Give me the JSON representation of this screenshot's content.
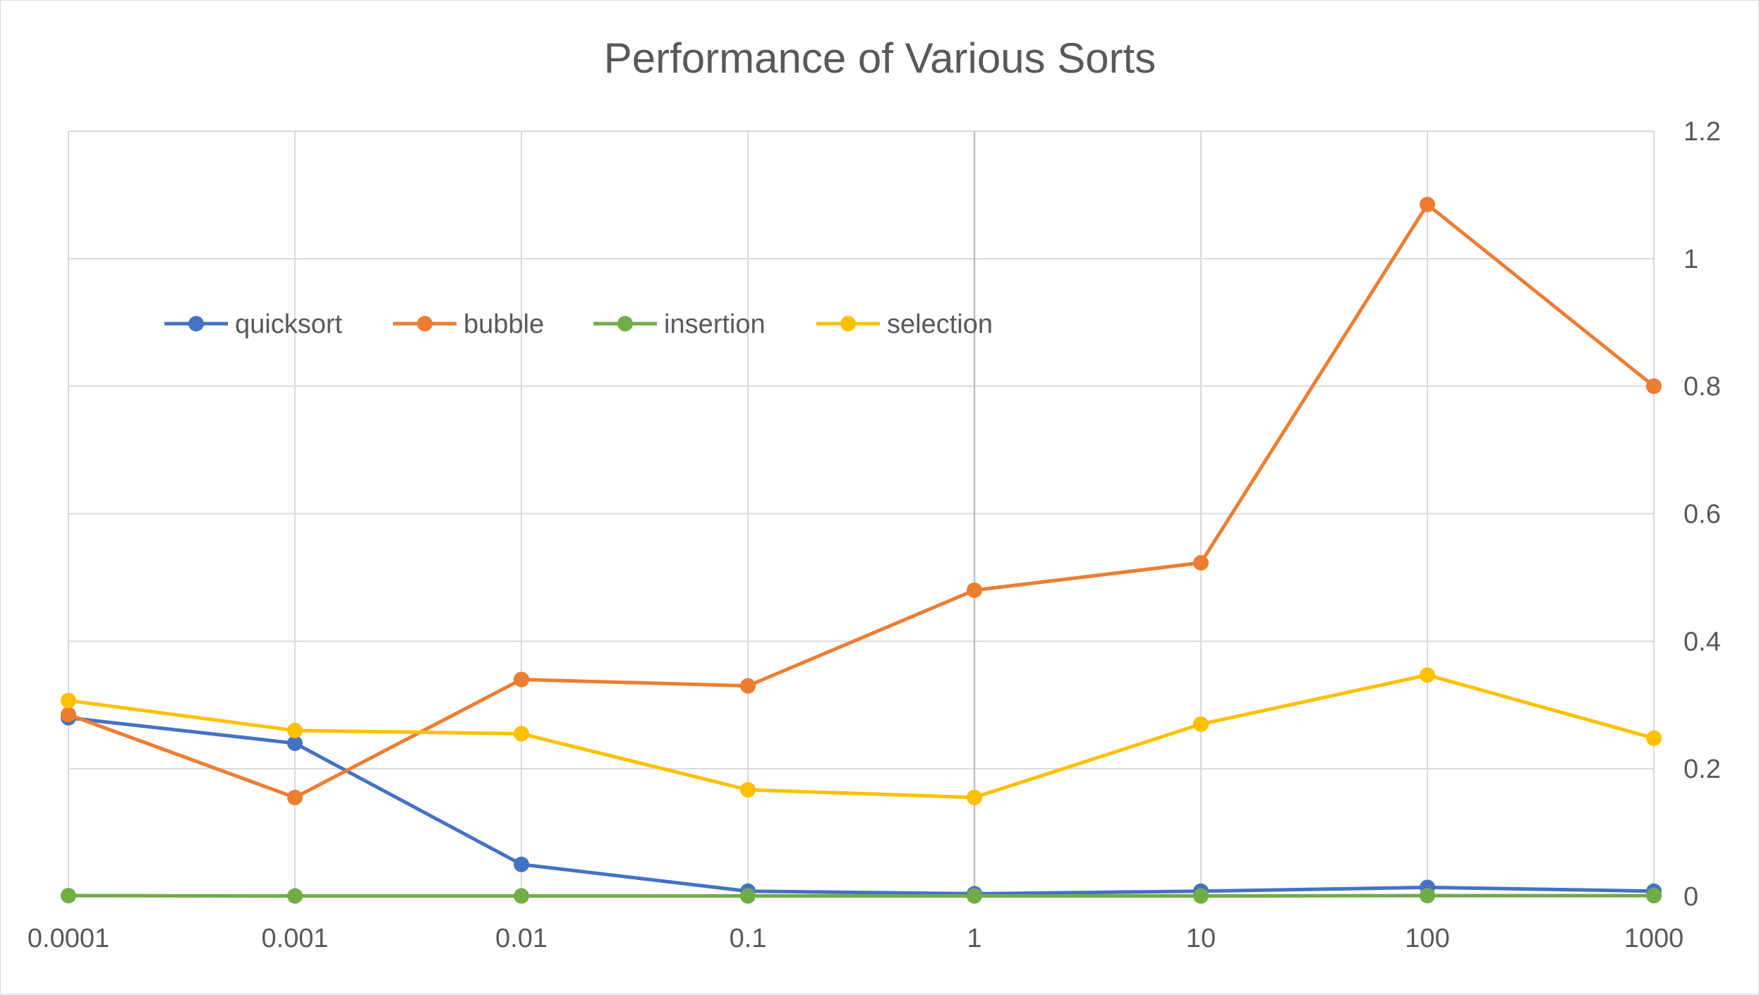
{
  "chart_data": {
    "type": "line",
    "title": "Performance of Various Sorts",
    "xlabel": "",
    "ylabel": "",
    "categories": [
      "0.0001",
      "0.001",
      "0.01",
      "0.1",
      "1",
      "10",
      "100",
      "1000"
    ],
    "ylim": [
      0,
      1.2
    ],
    "yticks": [
      "0",
      "0.2",
      "0.4",
      "0.6",
      "0.8",
      "1",
      "1.2"
    ],
    "y_axis_side": "right",
    "grid": true,
    "legend_position": "top-left",
    "series": [
      {
        "name": "quicksort",
        "color": "#4472C4",
        "values": [
          0.28,
          0.24,
          0.05,
          0.008,
          0.004,
          0.008,
          0.014,
          0.008
        ]
      },
      {
        "name": "bubble",
        "color": "#ED7D31",
        "values": [
          0.285,
          0.155,
          0.34,
          0.33,
          0.48,
          0.523,
          1.085,
          0.8
        ]
      },
      {
        "name": "insertion",
        "color": "#70AD47",
        "values": [
          0.001,
          0.0005,
          0.0005,
          0.0005,
          0.0005,
          0.0005,
          0.001,
          0.001
        ]
      },
      {
        "name": "selection",
        "color": "#FFC000",
        "values": [
          0.307,
          0.26,
          0.255,
          0.167,
          0.155,
          0.27,
          0.347,
          0.248
        ]
      }
    ]
  }
}
